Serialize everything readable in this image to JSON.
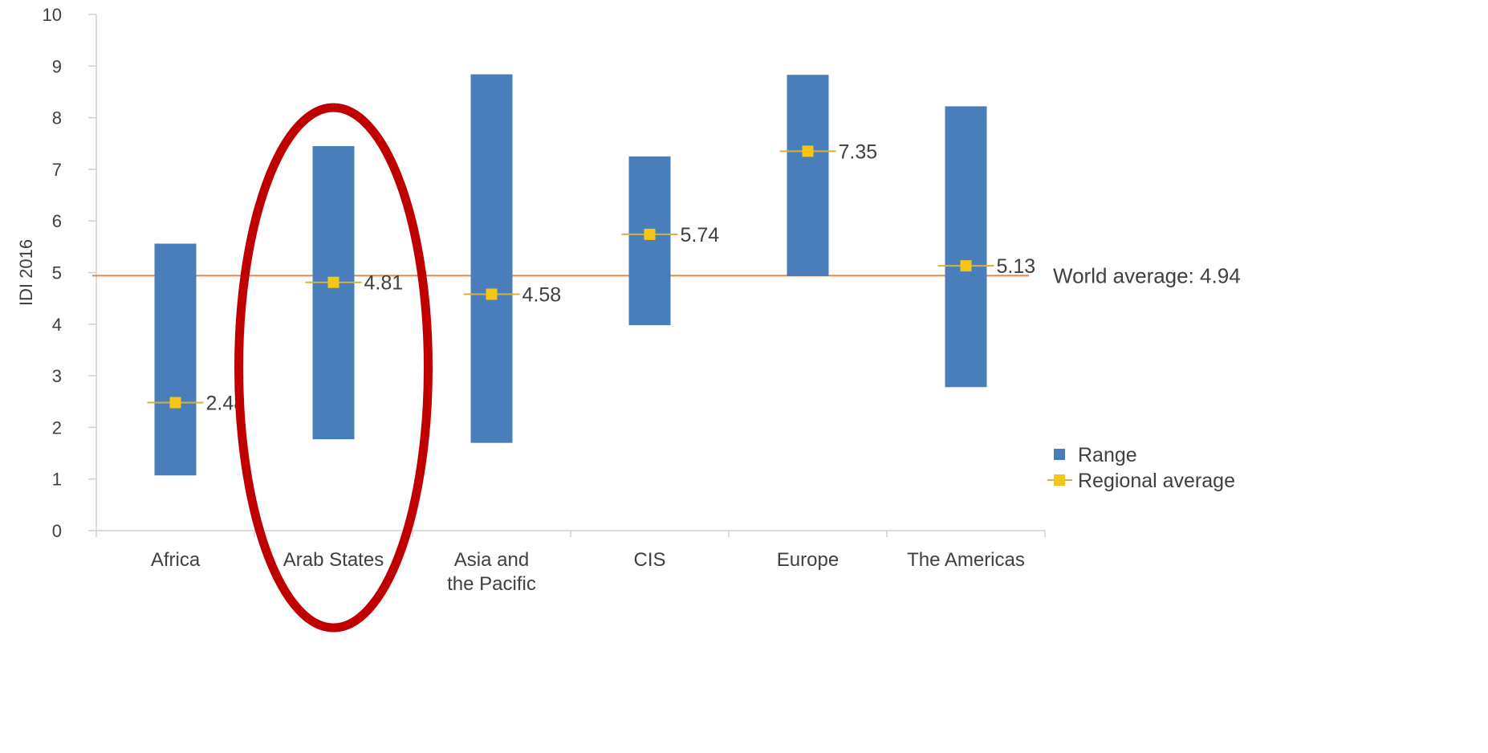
{
  "chart_data": {
    "type": "bar",
    "ylabel": "IDI 2016",
    "ylim": [
      0,
      10
    ],
    "yticks": [
      "0",
      "1",
      "2",
      "3",
      "4",
      "5",
      "6",
      "7",
      "8",
      "9",
      "10"
    ],
    "categories": [
      "Africa",
      "Arab States",
      "Asia and the Pacific",
      "CIS",
      "Europe",
      "The Americas"
    ],
    "category_lines": [
      [
        "Africa"
      ],
      [
        "Arab States"
      ],
      [
        "Asia and",
        "the Pacific"
      ],
      [
        "CIS"
      ],
      [
        "Europe"
      ],
      [
        "The Americas"
      ]
    ],
    "series": [
      {
        "name": "Range",
        "kind": "floating-bar",
        "low": [
          1.07,
          1.77,
          1.7,
          3.98,
          4.93,
          2.78
        ],
        "high": [
          5.56,
          7.45,
          8.84,
          7.25,
          8.83,
          8.22
        ],
        "color": "#4a7ebb"
      },
      {
        "name": "Regional average",
        "kind": "marker",
        "values": [
          2.48,
          4.81,
          4.58,
          5.74,
          7.35,
          5.13
        ],
        "labels": [
          "2.48",
          "4.81",
          "4.58",
          "5.74",
          "7.35",
          "5.13"
        ],
        "color": "#f5c518"
      }
    ],
    "reference_line": {
      "label": "World average: 4.94",
      "value": 4.94,
      "color": "#e8853f"
    },
    "annotation": {
      "shape": "ellipse",
      "target": "Arab States",
      "color": "#c00000"
    },
    "legend": {
      "position": "right",
      "entries": [
        "Range",
        "Regional average"
      ]
    },
    "grid": false
  }
}
